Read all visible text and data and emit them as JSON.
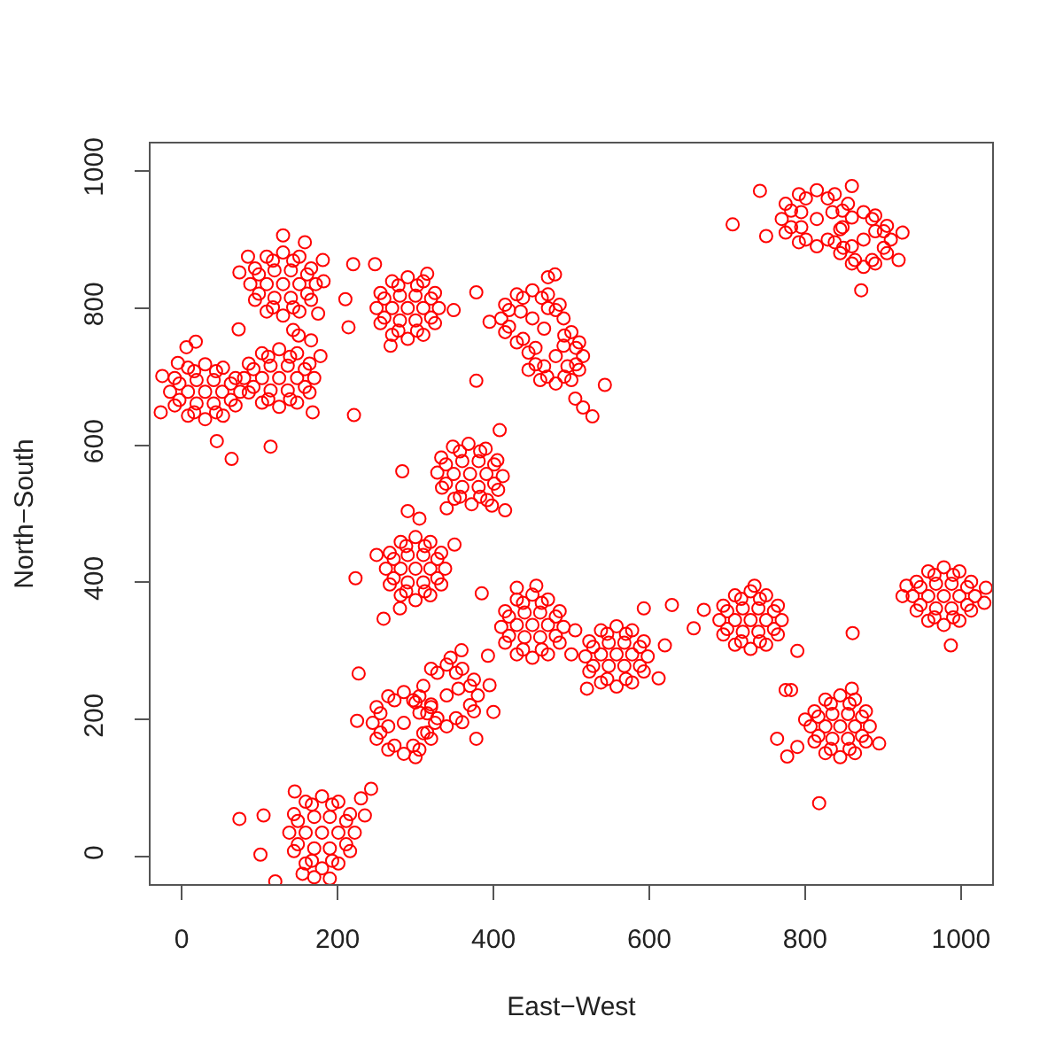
{
  "chart_data": {
    "type": "scatter",
    "xlabel": "East−West",
    "ylabel": "North−South",
    "xlim": [
      -40,
      1040
    ],
    "ylim": [
      -40,
      1040
    ],
    "xticks": [
      0,
      200,
      400,
      600,
      800,
      1000
    ],
    "yticks": [
      0,
      200,
      400,
      600,
      800,
      1000
    ],
    "marker": "circle",
    "series": [
      {
        "color": "#ff0000",
        "x": [
          172,
          166,
          151,
          130,
          109,
          94,
          88,
          94,
          109,
          130,
          151,
          166,
          151,
          140,
          119,
          109,
          119,
          140,
          130,
          85,
          130,
          158,
          181,
          182,
          175,
          74,
          143,
          161,
          143,
          117,
          99,
          99,
          117,
          143,
          161
        ],
        "values": [
          835,
          858,
          875,
          881,
          875,
          858,
          835,
          812,
          795,
          789,
          795,
          812,
          835,
          855,
          855,
          835,
          815,
          815,
          835,
          875,
          906,
          896,
          870,
          839,
          792,
          852,
          768,
          849,
          869,
          869,
          849,
          821,
          801,
          801,
          821
        ]
      },
      {
        "color": "#ff0000",
        "x": [
          330,
          325,
          310,
          290,
          270,
          255,
          250,
          255,
          270,
          290,
          310,
          325,
          310,
          300,
          280,
          270,
          280,
          300,
          290,
          220,
          248,
          210,
          214,
          221,
          349,
          268,
          315,
          320,
          302,
          278,
          260,
          260,
          278,
          302,
          320
        ],
        "values": [
          800,
          822,
          839,
          845,
          839,
          822,
          800,
          778,
          761,
          755,
          761,
          778,
          800,
          818,
          818,
          800,
          782,
          782,
          800,
          864,
          864,
          813,
          772,
          644,
          797,
          745,
          850,
          814,
          833,
          833,
          814,
          786,
          767,
          767,
          786
        ]
      },
      {
        "color": "#ff0000",
        "x": [
          75,
          69,
          53,
          30,
          8,
          -9,
          -15,
          -9,
          8,
          30,
          53,
          69,
          52,
          41,
          19,
          8,
          19,
          41,
          30,
          -27,
          -25,
          6,
          18,
          45,
          64,
          -5,
          63,
          44,
          16,
          -3,
          -3,
          16,
          44,
          63
        ],
        "values": [
          678,
          698,
          713,
          718,
          713,
          698,
          678,
          658,
          643,
          638,
          643,
          658,
          678,
          695,
          695,
          678,
          661,
          661,
          678,
          648,
          701,
          743,
          751,
          606,
          580,
          720,
          690,
          708,
          708,
          690,
          666,
          648,
          648,
          666
        ]
      },
      {
        "color": "#ff0000",
        "x": [
          170,
          164,
          148,
          125,
          103,
          86,
          80,
          86,
          103,
          125,
          148,
          164,
          148,
          136,
          114,
          103,
          114,
          136,
          125,
          73,
          114,
          168,
          166,
          150,
          178,
          158,
          139,
          111,
          92,
          92,
          111,
          139,
          158
        ],
        "values": [
          698,
          719,
          734,
          740,
          734,
          719,
          698,
          677,
          662,
          656,
          662,
          677,
          698,
          716,
          716,
          698,
          680,
          680,
          698,
          769,
          598,
          648,
          753,
          760,
          730,
          711,
          729,
          729,
          711,
          685,
          667,
          667,
          685
        ]
      },
      {
        "color": "#ff0000",
        "x": [
          412,
          405,
          390,
          368,
          348,
          333,
          328,
          334,
          350,
          372,
          392,
          406,
          391,
          381,
          360,
          349,
          360,
          381,
          370,
          283,
          408,
          415,
          398,
          340,
          401,
          383,
          357,
          339,
          339,
          357,
          383,
          401
        ],
        "values": [
          555,
          578,
          595,
          602,
          598,
          582,
          560,
          538,
          522,
          514,
          520,
          535,
          558,
          577,
          577,
          558,
          539,
          539,
          558,
          562,
          622,
          505,
          512,
          508,
          572,
          591,
          591,
          572,
          544,
          525,
          525,
          544
        ]
      },
      {
        "color": "#ff0000",
        "x": [
          338,
          333,
          319,
          300,
          281,
          267,
          262,
          267,
          281,
          300,
          319,
          333,
          319,
          310,
          290,
          281,
          290,
          310,
          300,
          223,
          259,
          290,
          305,
          250,
          350,
          280,
          328,
          312,
          288,
          272,
          272,
          288,
          312,
          328
        ],
        "values": [
          420,
          443,
          459,
          466,
          459,
          443,
          420,
          397,
          381,
          374,
          381,
          397,
          420,
          440,
          440,
          420,
          400,
          400,
          420,
          406,
          347,
          504,
          493,
          440,
          455,
          362,
          434,
          453,
          453,
          434,
          406,
          387,
          387,
          406
        ]
      },
      {
        "color": "#ff0000",
        "x": [
          325,
          320,
          305,
          285,
          265,
          250,
          245,
          250,
          265,
          285,
          305,
          320,
          380,
          375,
          360,
          340,
          320,
          375,
          360,
          340,
          285,
          305,
          265,
          340,
          320,
          355,
          300,
          310,
          227,
          225,
          378,
          400,
          359,
          345,
          300,
          395,
          315,
          297,
          273,
          255,
          255,
          273,
          297,
          315,
          370,
          352,
          328,
          310,
          370,
          352,
          328
        ],
        "values": [
          195,
          218,
          234,
          240,
          234,
          218,
          195,
          172,
          156,
          150,
          156,
          172,
          235,
          258,
          274,
          280,
          274,
          212,
          196,
          190,
          195,
          210,
          190,
          235,
          222,
          245,
          225,
          180,
          267,
          198,
          172,
          211,
          301,
          290,
          145,
          250,
          209,
          228,
          228,
          209,
          181,
          162,
          162,
          181,
          249,
          268,
          268,
          249,
          221,
          202,
          202
        ]
      },
      {
        "color": "#ff0000",
        "x": [
          222,
          216,
          201,
          180,
          159,
          144,
          138,
          144,
          159,
          180,
          201,
          216,
          170,
          190,
          155,
          201,
          190,
          170,
          159,
          170,
          190,
          180,
          74,
          105,
          101,
          243,
          230,
          235,
          145,
          120,
          211,
          193,
          167,
          149,
          149,
          167,
          193,
          211
        ],
        "values": [
          35,
          62,
          80,
          88,
          80,
          62,
          35,
          8,
          -10,
          -17,
          -10,
          8,
          -30,
          -32,
          -25,
          35,
          58,
          58,
          35,
          12,
          12,
          35,
          55,
          60,
          3,
          99,
          85,
          60,
          95,
          -36,
          52,
          76,
          76,
          52,
          18,
          -6,
          -6,
          18
        ]
      },
      {
        "color": "#ff0000",
        "x": [
          490,
          485,
          470,
          450,
          430,
          415,
          410,
          415,
          430,
          450,
          470,
          485,
          470,
          460,
          440,
          430,
          440,
          460,
          450,
          385,
          393,
          500,
          430,
          455,
          505,
          480,
          462,
          438,
          420,
          420,
          438,
          462,
          480
        ],
        "values": [
          335,
          358,
          375,
          382,
          375,
          358,
          335,
          312,
          295,
          290,
          295,
          312,
          338,
          356,
          356,
          338,
          320,
          320,
          338,
          384,
          293,
          295,
          392,
          395,
          330,
          350,
          370,
          370,
          350,
          322,
          302,
          302,
          322
        ]
      },
      {
        "color": "#ff0000",
        "x": [
          598,
          593,
          578,
          558,
          538,
          523,
          518,
          523,
          538,
          558,
          578,
          593,
          578,
          568,
          548,
          538,
          548,
          568,
          558,
          629,
          593,
          620,
          612,
          520,
          588,
          570,
          546,
          528,
          528,
          546,
          570,
          588
        ],
        "values": [
          292,
          314,
          330,
          336,
          330,
          314,
          292,
          270,
          254,
          248,
          254,
          270,
          295,
          312,
          312,
          295,
          278,
          278,
          295,
          367,
          362,
          308,
          260,
          245,
          306,
          325,
          325,
          306,
          278,
          259,
          259,
          278
        ]
      },
      {
        "color": "#ff0000",
        "x": [
          770,
          765,
          750,
          730,
          710,
          695,
          690,
          695,
          710,
          730,
          750,
          765,
          750,
          740,
          720,
          710,
          720,
          740,
          730,
          657,
          775,
          782,
          764,
          777,
          861,
          670,
          790,
          735,
          760,
          742,
          718,
          700,
          700,
          718,
          742,
          760
        ],
        "values": [
          345,
          366,
          381,
          387,
          381,
          366,
          345,
          324,
          309,
          303,
          309,
          324,
          345,
          362,
          362,
          345,
          328,
          328,
          345,
          333,
          243,
          243,
          172,
          146,
          326,
          360,
          300,
          395,
          358,
          376,
          376,
          358,
          332,
          314,
          314,
          332
        ]
      },
      {
        "color": "#ff0000",
        "x": [
          883,
          878,
          864,
          845,
          826,
          812,
          807,
          812,
          826,
          845,
          864,
          878,
          864,
          855,
          835,
          826,
          835,
          855,
          845,
          818,
          790,
          800,
          860,
          895,
          873,
          857,
          833,
          817,
          817,
          833,
          857,
          873
        ],
        "values": [
          190,
          212,
          229,
          235,
          229,
          212,
          190,
          168,
          151,
          145,
          151,
          168,
          190,
          208,
          208,
          190,
          172,
          172,
          190,
          78,
          160,
          200,
          245,
          165,
          204,
          223,
          223,
          204,
          176,
          157,
          157,
          176
        ]
      },
      {
        "color": "#ff0000",
        "x": [
          1018,
          1013,
          998,
          978,
          958,
          943,
          938,
          943,
          958,
          978,
          998,
          1013,
          998,
          988,
          968,
          958,
          968,
          988,
          978,
          987,
          925,
          930,
          1032,
          1030,
          1008,
          990,
          966,
          948,
          948,
          966,
          990,
          1008
        ],
        "values": [
          380,
          401,
          416,
          422,
          416,
          401,
          380,
          359,
          344,
          338,
          344,
          359,
          380,
          398,
          398,
          380,
          362,
          362,
          380,
          308,
          380,
          395,
          392,
          370,
          393,
          411,
          411,
          393,
          367,
          349,
          349,
          367
        ]
      },
      {
        "color": "#ff0000",
        "x": [
          860,
          855,
          838,
          815,
          792,
          775,
          770,
          775,
          792,
          815,
          838,
          910,
          905,
          890,
          875,
          905,
          890,
          875,
          860,
          845,
          815,
          835,
          795,
          795,
          875,
          890,
          860,
          845,
          707,
          872,
          742,
          750,
          920,
          925,
          860,
          848,
          829,
          801,
          782,
          782,
          801,
          829,
          848,
          901,
          886,
          901,
          886,
          864,
          849
        ],
        "values": [
          932,
          952,
          966,
          972,
          966,
          952,
          930,
          910,
          896,
          890,
          896,
          900,
          920,
          935,
          940,
          880,
          865,
          860,
          865,
          880,
          930,
          940,
          940,
          918,
          900,
          912,
          890,
          915,
          922,
          826,
          971,
          905,
          870,
          910,
          978,
          942,
          960,
          960,
          942,
          918,
          900,
          900,
          918,
          912,
          930,
          888,
          870,
          870,
          888
        ]
      },
      {
        "color": "#ff0000",
        "x": [
          490,
          485,
          470,
          450,
          430,
          415,
          410,
          415,
          430,
          515,
          510,
          500,
          480,
          460,
          445,
          500,
          510,
          445,
          450,
          465,
          435,
          470,
          480,
          490,
          465,
          495,
          378,
          378,
          543,
          505,
          515,
          527,
          479,
          395,
          470,
          480,
          462,
          438,
          420,
          420,
          438,
          506,
          491,
          454,
          454,
          469,
          491,
          506
        ],
        "values": [
          785,
          805,
          820,
          826,
          820,
          805,
          785,
          765,
          750,
          730,
          750,
          765,
          690,
          695,
          710,
          695,
          710,
          735,
          785,
          770,
          795,
          800,
          730,
          745,
          715,
          715,
          823,
          694,
          688,
          668,
          655,
          642,
          849,
          780,
          845,
          797,
          815,
          815,
          797,
          773,
          755,
          742,
          760,
          742,
          718,
          700,
          700,
          718
        ]
      }
    ]
  }
}
